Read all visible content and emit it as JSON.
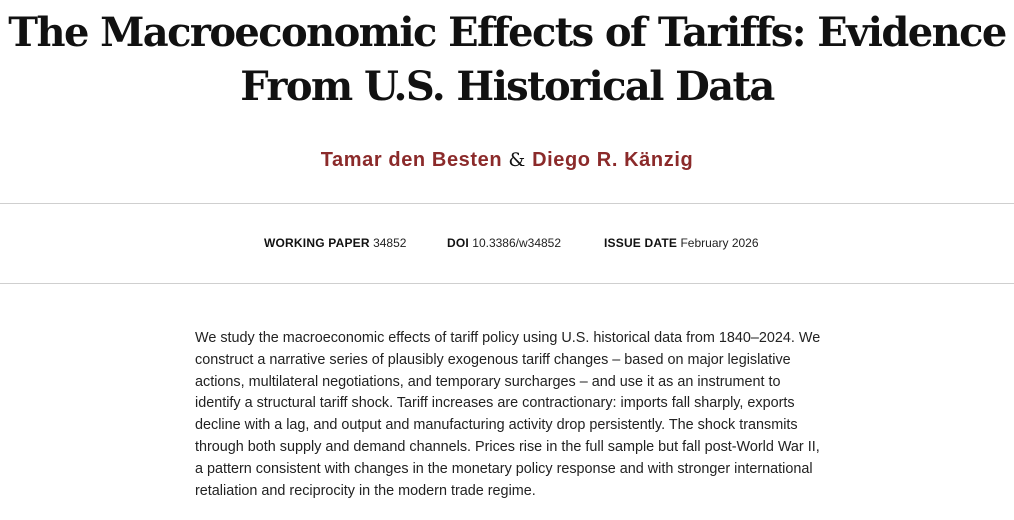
{
  "title": {
    "line1": "The Macroeconomic Effects of Tariffs: Evidence",
    "line2": "From U.S. Historical Data"
  },
  "authors": {
    "first": "Tamar den Besten",
    "separator": "&",
    "second": "Diego R. Känzig"
  },
  "meta": {
    "working_paper_label": "WORKING PAPER",
    "working_paper_value": "34852",
    "doi_label": "DOI",
    "doi_value": "10.3386/w34852",
    "issue_date_label": "ISSUE DATE",
    "issue_date_value": "February 2026"
  },
  "abstract": "We study the macroeconomic effects of tariff policy using U.S. historical data from 1840–2024. We construct a narrative series of plausibly exogenous tariff changes – based on major legislative actions, multilateral negotiations, and temporary surcharges – and use it as an instrument to identify a structural tariff shock. Tariff increases are contractionary: imports fall sharply, exports decline with a lag, and output and manufacturing activity drop persistently. The shock transmits through both supply and demand channels. Prices rise in the full sample but fall post-World War II, a pattern consistent with changes in the monetary policy response and with stronger international retaliation and reciprocity in the modern trade regime."
}
